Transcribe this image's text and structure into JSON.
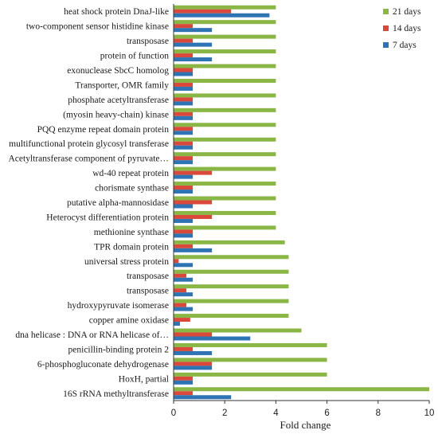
{
  "chart_data": {
    "type": "bar",
    "orientation": "horizontal",
    "title": "",
    "xlabel": "Fold change",
    "ylabel": "",
    "xlim": [
      0,
      10
    ],
    "xticks": [
      0,
      2,
      4,
      6,
      8,
      10
    ],
    "grid": false,
    "legend_position": "top-right",
    "categories": [
      "heat shock protein DnaJ-like",
      "two-component sensor histidine kinase",
      "transposase",
      "protein of  function",
      "exonuclease SbcC homolog",
      "Transporter, OMR family",
      "phosphate acetyltransferase",
      "(myosin heavy-chain) kinase",
      "PQQ enzyme repeat domain protein",
      "multifunctional protein glycosyl transferase",
      "Acetyltransferase component of pyruvate…",
      "wd-40 repeat protein",
      "chorismate synthase",
      "putative alpha-mannosidase",
      "Heterocyst differentiation protein",
      "methionine synthase",
      "TPR domain protein",
      "universal stress protein",
      "transposase",
      "transposase",
      "hydroxypyruvate isomerase",
      "copper amine oxidase",
      "dna helicase : DNA or RNA helicase of…",
      "penicillin-binding protein 2",
      "6-phosphogluconate dehydrogenase",
      "HoxH, partial",
      "16S rRNA methyltransferase"
    ],
    "series": [
      {
        "name": "21 days",
        "color": "#8ab645",
        "values": [
          4,
          4,
          4,
          4,
          4,
          4,
          4,
          4,
          4,
          4,
          4,
          4,
          4,
          4,
          4,
          4,
          4.35,
          4.5,
          4.5,
          4.5,
          4.5,
          4.5,
          5,
          6,
          6,
          6,
          10
        ]
      },
      {
        "name": "14 days",
        "color": "#d9483b",
        "values": [
          2.25,
          0.75,
          0.75,
          0.75,
          0.75,
          0.75,
          0.75,
          0.75,
          0.75,
          0.75,
          0.75,
          1.5,
          0.75,
          1.5,
          1.5,
          0.75,
          0.75,
          0.2,
          0.5,
          0.5,
          0.5,
          0.65,
          1.5,
          0.75,
          1.5,
          0.75,
          0.75
        ]
      },
      {
        "name": "7 days",
        "color": "#2e74b5",
        "values": [
          3.75,
          1.5,
          1.5,
          1.5,
          0.75,
          0.75,
          0.75,
          0.75,
          0.75,
          0.75,
          0.75,
          0.75,
          0.75,
          0.75,
          0.75,
          0.75,
          1.5,
          0.75,
          0.75,
          0.75,
          0.75,
          0.25,
          3,
          1.5,
          1.5,
          0.75,
          2.25
        ]
      }
    ]
  }
}
